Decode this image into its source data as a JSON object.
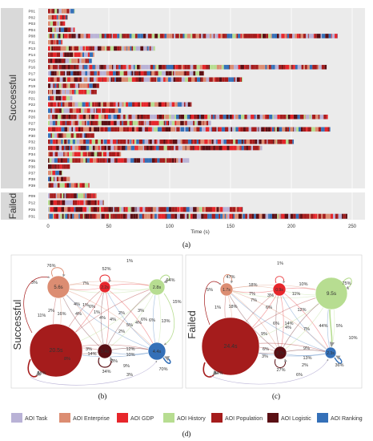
{
  "panel_a": {
    "caption": "(a)",
    "successful_label": "Successful",
    "failed_label": "Failed",
    "x_axis_label": "Time (s)"
  },
  "panel_b": {
    "caption": "(b)",
    "side_label": "Successful"
  },
  "panel_c": {
    "caption": "(c)",
    "side_label": "Failed"
  },
  "legend_caption": "(d)",
  "colors": {
    "Task": "#b9b2d6",
    "Enterprise": "#dc8d72",
    "GDP": "#e7262b",
    "History": "#b7dd91",
    "Population": "#a51c1c",
    "Logistic": "#5a0f14",
    "Ranking": "#3470b8"
  },
  "chart_data": [
    {
      "type": "table",
      "title": "",
      "xlabel": "Time (s)",
      "xlim": [
        -10,
        260
      ],
      "xticks": [
        0,
        50,
        100,
        150,
        200,
        250
      ],
      "groups": [
        {
          "name": "Successful",
          "participants": [
            {
              "id": "P01",
              "end": 22
            },
            {
              "id": "P02",
              "end": 16
            },
            {
              "id": "P03",
              "end": 14
            },
            {
              "id": "P04",
              "end": 22
            },
            {
              "id": "P08",
              "end": 238
            },
            {
              "id": "P11",
              "end": 12
            },
            {
              "id": "P13",
              "end": 88
            },
            {
              "id": "P14",
              "end": 38
            },
            {
              "id": "P15",
              "end": 36
            },
            {
              "id": "P16",
              "end": 229
            },
            {
              "id": "P17",
              "end": 128
            },
            {
              "id": "P18",
              "end": 160
            },
            {
              "id": "P19",
              "end": 42
            },
            {
              "id": "P20",
              "end": 40
            },
            {
              "id": "P21",
              "end": 20
            },
            {
              "id": "P22",
              "end": 118
            },
            {
              "id": "P24",
              "end": 60
            },
            {
              "id": "P26",
              "end": 230
            },
            {
              "id": "P27",
              "end": 134
            },
            {
              "id": "P29",
              "end": 232
            },
            {
              "id": "P30",
              "end": 38
            },
            {
              "id": "P32",
              "end": 202
            },
            {
              "id": "P33",
              "end": 176
            },
            {
              "id": "P34",
              "end": 60
            },
            {
              "id": "P35",
              "end": 116
            },
            {
              "id": "P36",
              "end": 18
            },
            {
              "id": "P37",
              "end": 12
            },
            {
              "id": "P38",
              "end": 18
            },
            {
              "id": "P39",
              "end": 34
            }
          ]
        },
        {
          "name": "Failed",
          "participants": [
            {
              "id": "P09",
              "end": 40
            },
            {
              "id": "P12",
              "end": 46
            },
            {
              "id": "P25",
              "end": 160
            },
            {
              "id": "P31",
              "end": 246
            }
          ]
        }
      ],
      "categories": [
        "AOI Task",
        "AOI Enterprise",
        "AOI GDP",
        "AOI History",
        "AOI Population",
        "AOI Logistic",
        "AOI Ranking"
      ]
    },
    {
      "type": "table",
      "title": "Successful",
      "nodes": [
        {
          "aoi": "Enterprise",
          "dwell": "5.6s"
        },
        {
          "aoi": "GDP",
          "dwell": "2.2s"
        },
        {
          "aoi": "History",
          "dwell": "2.8s"
        },
        {
          "aoi": "Population",
          "dwell": "20.5s"
        },
        {
          "aoi": "Logistic",
          "dwell": "3.4s"
        },
        {
          "aoi": "Ranking",
          "dwell": "4.4s"
        }
      ],
      "percentage_labels": [
        "1%",
        "76%",
        "3%",
        "52%",
        "64%",
        "7%",
        "1%",
        "4%",
        "16%",
        "6%",
        "4%",
        "2%",
        "1%",
        "4%",
        "2%",
        "4%",
        "15%",
        "11%",
        "6%",
        "4%",
        "3%",
        "6%",
        "13%",
        "5%",
        "3%",
        "12%",
        "10%",
        "14%",
        "9%",
        "70%",
        "34%",
        "3%",
        "58%",
        "8%",
        "3%",
        "2%"
      ]
    },
    {
      "type": "table",
      "title": "Failed",
      "nodes": [
        {
          "aoi": "Enterprise",
          "dwell": "1.7s"
        },
        {
          "aoi": "GDP",
          "dwell": "0.9s"
        },
        {
          "aoi": "History",
          "dwell": "9.5s"
        },
        {
          "aoi": "Population",
          "dwell": "24.4s"
        },
        {
          "aoi": "Logistic",
          "dwell": "2.7s"
        },
        {
          "aoi": "Ranking",
          "dwell": "2.3s"
        }
      ],
      "percentage_labels": [
        "1%",
        "47%",
        "5%",
        "18%",
        "10%",
        "75%",
        "7%",
        "3%",
        "7%",
        "18%",
        "1%",
        "6%",
        "6%",
        "14%",
        "12%",
        "11%",
        "7%",
        "44%",
        "5%",
        "10%",
        "9%",
        "6%",
        "9%",
        "13%",
        "3%",
        "2%",
        "6%",
        "27%",
        "36%",
        "84%",
        "4%"
      ]
    }
  ],
  "legend": [
    {
      "label": "AOI Task",
      "key": "Task"
    },
    {
      "label": "AOI Enterprise",
      "key": "Enterprise"
    },
    {
      "label": "AOI GDP",
      "key": "GDP"
    },
    {
      "label": "AOI History",
      "key": "History"
    },
    {
      "label": "AOI Population",
      "key": "Population"
    },
    {
      "label": "AOI Logistic",
      "key": "Logistic"
    },
    {
      "label": "AOI Ranking",
      "key": "Ranking"
    }
  ]
}
